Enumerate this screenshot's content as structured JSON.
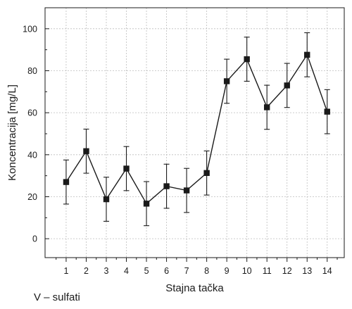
{
  "chart_data": {
    "type": "line",
    "xlabel": "Stajna tačka",
    "ylabel": "Koncentracija [mg/L]",
    "caption": "V – sulfati",
    "x": [
      1,
      2,
      3,
      4,
      5,
      6,
      7,
      8,
      9,
      10,
      11,
      12,
      13,
      14
    ],
    "y": [
      27,
      41.7,
      18.8,
      33.4,
      16.7,
      25,
      23,
      31.3,
      75,
      85.5,
      62.6,
      73,
      87.6,
      60.5
    ],
    "y_err": [
      10.5,
      10.5,
      10.5,
      10.5,
      10.5,
      10.5,
      10.5,
      10.5,
      10.5,
      10.5,
      10.5,
      10.5,
      10.5,
      10.5
    ],
    "xlim": [
      -0.05,
      14.85
    ],
    "ylim": [
      -9,
      110
    ],
    "xticks": [
      1,
      2,
      3,
      4,
      5,
      6,
      7,
      8,
      9,
      10,
      11,
      12,
      13,
      14
    ],
    "yticks": [
      0,
      20,
      40,
      60,
      80,
      100
    ],
    "grid": true,
    "legend": "none",
    "colors": {
      "line": "#1a1a1a",
      "marker": "#1a1a1a",
      "grid": "#bdbdbd",
      "axis": "#1a1a1a"
    }
  }
}
